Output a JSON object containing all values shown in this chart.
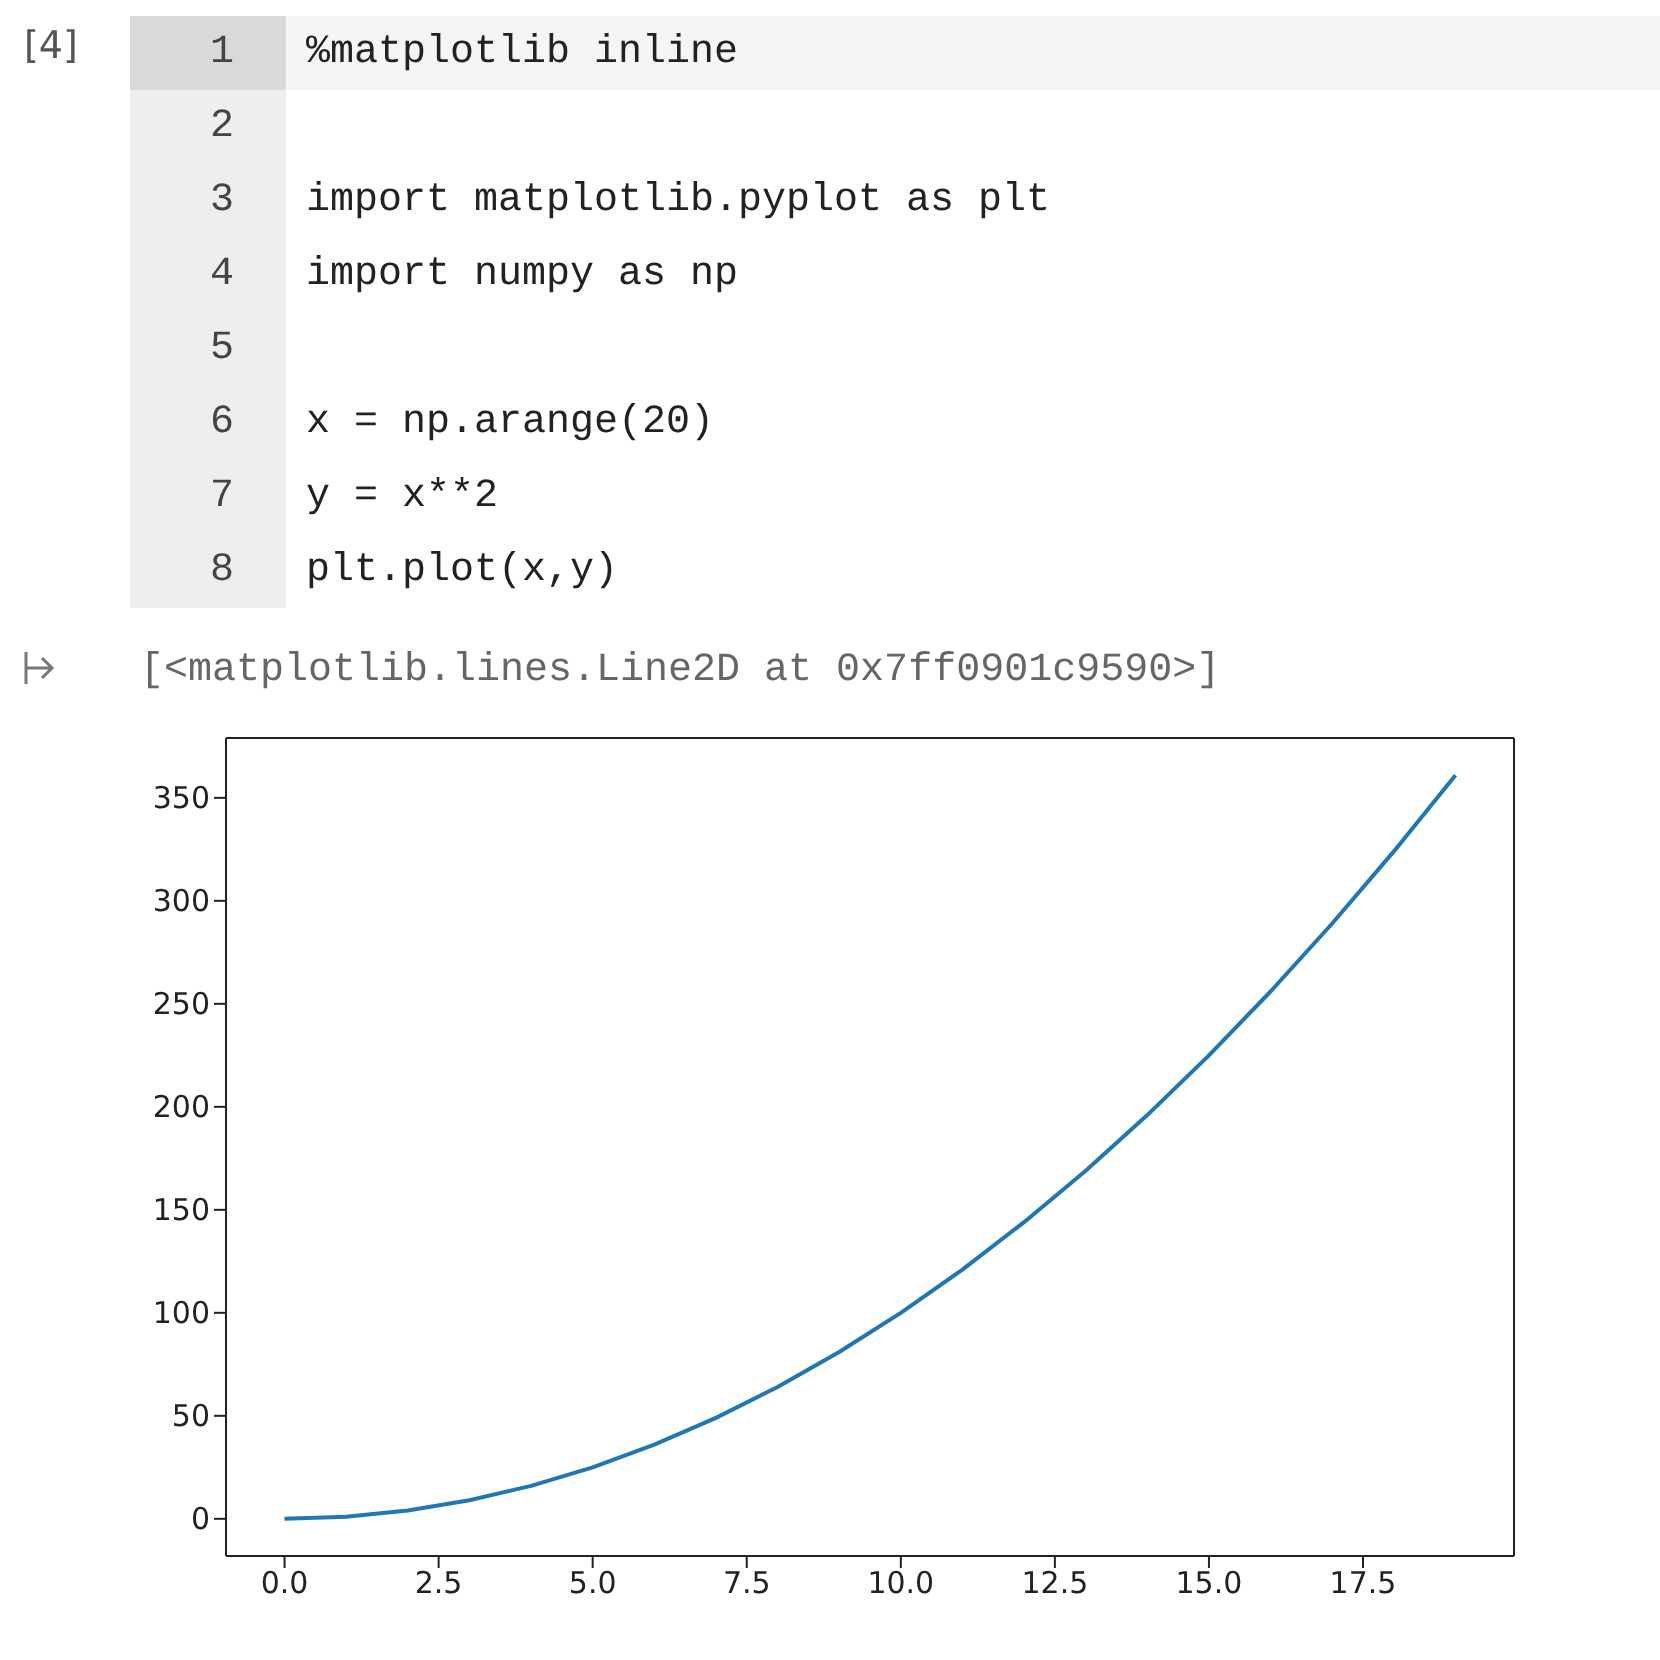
{
  "chart_data": {
    "type": "line",
    "annotations": [
      "[4]",
      "1",
      "%matplotlib inline",
      "2",
      "3",
      "import matplotlib.pyplot as plt",
      "4",
      "import numpy as np",
      "5",
      "6",
      "x = np.arange(20)",
      "7",
      "y = x**2",
      "8",
      "plt.plot(x,y)",
      "[<matplotlib.lines.Line2D at 0x7ff0901c9590>]"
    ],
    "x": [
      0,
      1,
      2,
      3,
      4,
      5,
      6,
      7,
      8,
      9,
      10,
      11,
      12,
      13,
      14,
      15,
      16,
      17,
      18,
      19
    ],
    "series": [
      {
        "color": "#1f77b4",
        "values": [
          0,
          1,
          4,
          9,
          16,
          25,
          36,
          49,
          64,
          81,
          100,
          121,
          144,
          169,
          196,
          225,
          256,
          289,
          324,
          361
        ]
      }
    ],
    "xlim": [
      -0.95,
      19.95
    ],
    "xticks": [
      {
        "value": 0,
        "label": "0.0"
      },
      {
        "value": 2.5,
        "label": "2.5"
      },
      {
        "value": 5,
        "label": "5.0"
      },
      {
        "value": 7.5,
        "label": "7.5"
      },
      {
        "value": 10,
        "label": "10.0"
      },
      {
        "value": 12.5,
        "label": "12.5"
      },
      {
        "value": 15,
        "label": "15.0"
      },
      {
        "value": 17.5,
        "label": "17.5"
      }
    ],
    "ylim": [
      -18.05,
      379.05
    ],
    "yticks": [
      0,
      50,
      100,
      150,
      200,
      250,
      300,
      350
    ]
  }
}
